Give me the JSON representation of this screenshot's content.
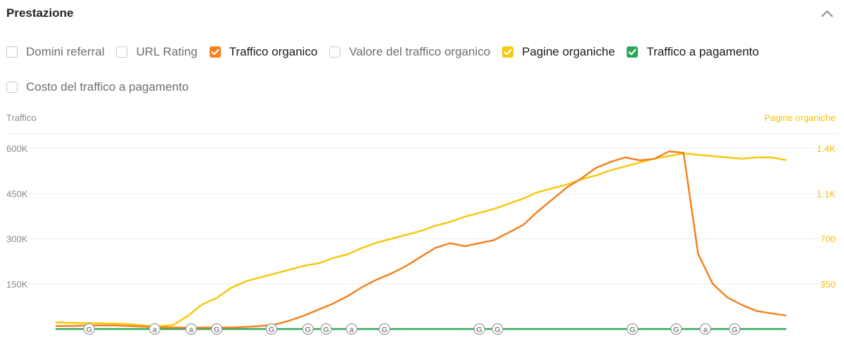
{
  "panel": {
    "title": "Prestazione",
    "collapse_icon": "chevron-up-icon"
  },
  "options": [
    {
      "label": "Domini referral",
      "checked": false,
      "color": ""
    },
    {
      "label": "URL Rating",
      "checked": false,
      "color": ""
    },
    {
      "label": "Traffico organico",
      "checked": true,
      "color": "#f5821f"
    },
    {
      "label": "Valore del traffico organico",
      "checked": false,
      "color": ""
    },
    {
      "label": "Pagine organiche",
      "checked": true,
      "color": "#f6c90e"
    },
    {
      "label": "Traffico a pagamento",
      "checked": true,
      "color": "#2da858"
    },
    {
      "label": "Costo del traffico a pagamento",
      "checked": false,
      "color": ""
    }
  ],
  "chart_data": {
    "type": "line",
    "xlabel": "",
    "left_axis": {
      "title": "Traffico",
      "ticks": [
        150000,
        300000,
        450000,
        600000
      ],
      "tick_labels": [
        "150K",
        "300K",
        "450K",
        "600K"
      ],
      "range": [
        0,
        600000
      ]
    },
    "right_axis": {
      "title": "Pagine organiche",
      "ticks": [
        350,
        700,
        1050,
        1400
      ],
      "tick_labels": [
        "350",
        "700",
        "1.1K",
        "1.4K"
      ],
      "range": [
        0,
        1400
      ]
    },
    "grid": true,
    "x": [
      0,
      2,
      4,
      6,
      8,
      10,
      12,
      14,
      16,
      18,
      20,
      22,
      24,
      26,
      28,
      30,
      32,
      34,
      36,
      38,
      40,
      42,
      44,
      46,
      48,
      50,
      52,
      54,
      56,
      58,
      60,
      62,
      64,
      66,
      68,
      70,
      72,
      74,
      76,
      78,
      80,
      82,
      84,
      86,
      88,
      90,
      92,
      94,
      96,
      98,
      100
    ],
    "series": [
      {
        "name": "Traffico organico",
        "color": "#f5821f",
        "axis": "left",
        "values": [
          10000,
          10000,
          12000,
          12000,
          12000,
          10000,
          8000,
          6000,
          5000,
          5000,
          5000,
          5000,
          5000,
          7000,
          10000,
          15000,
          28000,
          45000,
          65000,
          85000,
          110000,
          140000,
          165000,
          185000,
          210000,
          240000,
          270000,
          285000,
          275000,
          285000,
          295000,
          320000,
          345000,
          390000,
          430000,
          470000,
          500000,
          535000,
          555000,
          570000,
          560000,
          565000,
          590000,
          585000,
          250000,
          150000,
          105000,
          80000,
          60000,
          52000,
          45000
        ]
      },
      {
        "name": "Pagine organiche",
        "color": "#f6c90e",
        "axis": "right",
        "values": [
          50,
          48,
          46,
          45,
          42,
          38,
          28,
          22,
          30,
          100,
          190,
          240,
          320,
          370,
          400,
          430,
          460,
          490,
          510,
          550,
          580,
          630,
          670,
          700,
          730,
          760,
          800,
          830,
          870,
          900,
          930,
          970,
          1010,
          1060,
          1090,
          1120,
          1160,
          1190,
          1230,
          1260,
          1290,
          1320,
          1340,
          1360,
          1350,
          1340,
          1330,
          1320,
          1330,
          1330,
          1310
        ]
      },
      {
        "name": "Traffico a pagamento",
        "color": "#2da858",
        "axis": "left",
        "values": [
          0,
          0,
          0,
          0,
          0,
          0,
          0,
          0,
          0,
          0,
          0,
          0,
          0,
          0,
          0,
          0,
          0,
          0,
          0,
          0,
          0,
          0,
          0,
          0,
          0,
          0,
          0,
          0,
          0,
          0,
          0,
          0,
          0,
          0,
          0,
          0,
          0,
          0,
          0,
          0,
          0,
          0,
          0,
          0,
          0,
          0,
          0,
          0,
          0,
          0,
          0
        ]
      }
    ],
    "annotations": [
      {
        "x": 4.5,
        "label": "G"
      },
      {
        "x": 13.5,
        "label": "a"
      },
      {
        "x": 18.5,
        "label": "a"
      },
      {
        "x": 22,
        "label": "G"
      },
      {
        "x": 29.5,
        "label": "G"
      },
      {
        "x": 34.5,
        "label": "G"
      },
      {
        "x": 37,
        "label": "G"
      },
      {
        "x": 40.5,
        "label": "a"
      },
      {
        "x": 45,
        "label": "G"
      },
      {
        "x": 58,
        "label": "G"
      },
      {
        "x": 60.5,
        "label": "G"
      },
      {
        "x": 79,
        "label": "G"
      },
      {
        "x": 85,
        "label": "G"
      },
      {
        "x": 89,
        "label": "a"
      },
      {
        "x": 93,
        "label": "G"
      }
    ]
  }
}
